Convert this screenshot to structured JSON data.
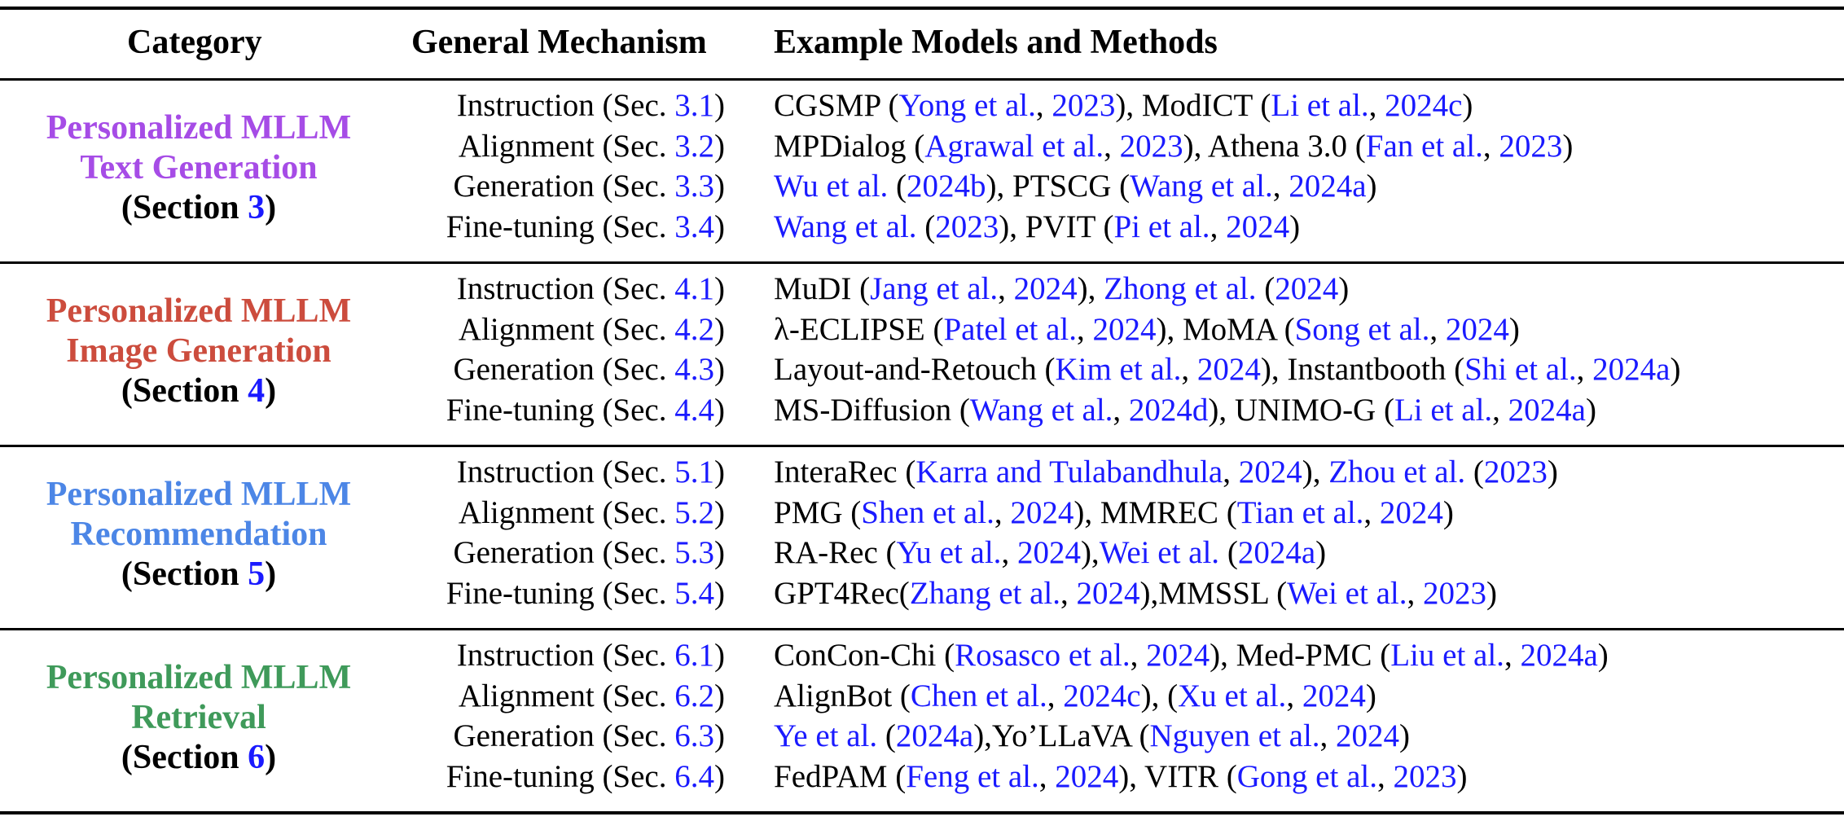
{
  "columns": {
    "category": "Category",
    "mechanism": "General Mechanism",
    "examples": "Example Models and Methods"
  },
  "colors": {
    "link": "#1a1aff",
    "text_generation": "#a64ce6",
    "image_generation": "#cc4c3d",
    "recommendation": "#4c86e6",
    "retrieval": "#3f9a5a"
  },
  "sections": [
    {
      "title_line1": "Personalized MLLM",
      "title_line2": "Text Generation",
      "section_label": "Section",
      "section_num": "3",
      "color": "#a64ce6",
      "rows": [
        {
          "mech": "Instruction (Sec. ",
          "num": "3.1",
          "parts": [
            {
              "t": "CGSMP (",
              "l": false
            },
            {
              "t": "Yong et al.",
              "l": true
            },
            {
              "t": ", ",
              "l": false
            },
            {
              "t": "2023",
              "l": true
            },
            {
              "t": "), ModICT (",
              "l": false
            },
            {
              "t": "Li et al.",
              "l": true
            },
            {
              "t": ", ",
              "l": false
            },
            {
              "t": "2024c",
              "l": true
            },
            {
              "t": ")",
              "l": false
            }
          ]
        },
        {
          "mech": "Alignment (Sec. ",
          "num": "3.2",
          "parts": [
            {
              "t": "MPDialog (",
              "l": false
            },
            {
              "t": "Agrawal et al.",
              "l": true
            },
            {
              "t": ", ",
              "l": false
            },
            {
              "t": "2023",
              "l": true
            },
            {
              "t": "), Athena 3.0 (",
              "l": false
            },
            {
              "t": "Fan et al.",
              "l": true
            },
            {
              "t": ", ",
              "l": false
            },
            {
              "t": "2023",
              "l": true
            },
            {
              "t": ")",
              "l": false
            }
          ]
        },
        {
          "mech": "Generation (Sec. ",
          "num": "3.3",
          "parts": [
            {
              "t": "Wu et al.",
              "l": true
            },
            {
              "t": " (",
              "l": false
            },
            {
              "t": "2024b",
              "l": true
            },
            {
              "t": "), PTSCG (",
              "l": false
            },
            {
              "t": "Wang et al.",
              "l": true
            },
            {
              "t": ", ",
              "l": false
            },
            {
              "t": "2024a",
              "l": true
            },
            {
              "t": ")",
              "l": false
            }
          ]
        },
        {
          "mech": "Fine-tuning (Sec. ",
          "num": "3.4",
          "parts": [
            {
              "t": "Wang et al.",
              "l": true
            },
            {
              "t": " (",
              "l": false
            },
            {
              "t": "2023",
              "l": true
            },
            {
              "t": "), PVIT (",
              "l": false
            },
            {
              "t": "Pi et al.",
              "l": true
            },
            {
              "t": ", ",
              "l": false
            },
            {
              "t": "2024",
              "l": true
            },
            {
              "t": ")",
              "l": false
            }
          ]
        }
      ]
    },
    {
      "title_line1": "Personalized MLLM",
      "title_line2": "Image Generation",
      "section_label": "Section",
      "section_num": "4",
      "color": "#cc4c3d",
      "rows": [
        {
          "mech": "Instruction (Sec. ",
          "num": "4.1",
          "parts": [
            {
              "t": "MuDI (",
              "l": false
            },
            {
              "t": "Jang et al.",
              "l": true
            },
            {
              "t": ", ",
              "l": false
            },
            {
              "t": "2024",
              "l": true
            },
            {
              "t": "), ",
              "l": false
            },
            {
              "t": "Zhong et al.",
              "l": true
            },
            {
              "t": " (",
              "l": false
            },
            {
              "t": "2024",
              "l": true
            },
            {
              "t": ")",
              "l": false
            }
          ]
        },
        {
          "mech": "Alignment (Sec. ",
          "num": "4.2",
          "parts": [
            {
              "t": "λ-ECLIPSE (",
              "l": false
            },
            {
              "t": "Patel et al.",
              "l": true
            },
            {
              "t": ", ",
              "l": false
            },
            {
              "t": "2024",
              "l": true
            },
            {
              "t": "), MoMA (",
              "l": false
            },
            {
              "t": "Song et al.",
              "l": true
            },
            {
              "t": ", ",
              "l": false
            },
            {
              "t": "2024",
              "l": true
            },
            {
              "t": ")",
              "l": false
            }
          ]
        },
        {
          "mech": "Generation (Sec. ",
          "num": "4.3",
          "parts": [
            {
              "t": "Layout-and-Retouch (",
              "l": false
            },
            {
              "t": "Kim et al.",
              "l": true
            },
            {
              "t": ", ",
              "l": false
            },
            {
              "t": "2024",
              "l": true
            },
            {
              "t": "), Instantbooth (",
              "l": false
            },
            {
              "t": "Shi et al.",
              "l": true
            },
            {
              "t": ", ",
              "l": false
            },
            {
              "t": "2024a",
              "l": true
            },
            {
              "t": ")",
              "l": false
            }
          ]
        },
        {
          "mech": "Fine-tuning (Sec. ",
          "num": "4.4",
          "parts": [
            {
              "t": "MS-Diffusion (",
              "l": false
            },
            {
              "t": "Wang et al.",
              "l": true
            },
            {
              "t": ", ",
              "l": false
            },
            {
              "t": "2024d",
              "l": true
            },
            {
              "t": "), UNIMO-G (",
              "l": false
            },
            {
              "t": "Li et al.",
              "l": true
            },
            {
              "t": ", ",
              "l": false
            },
            {
              "t": "2024a",
              "l": true
            },
            {
              "t": ")",
              "l": false
            }
          ]
        }
      ]
    },
    {
      "title_line1": "Personalized MLLM",
      "title_line2": "Recommendation",
      "section_label": "Section",
      "section_num": "5",
      "color": "#4c86e6",
      "rows": [
        {
          "mech": "Instruction (Sec. ",
          "num": "5.1",
          "parts": [
            {
              "t": "InteraRec (",
              "l": false
            },
            {
              "t": "Karra and Tulabandhula",
              "l": true
            },
            {
              "t": ", ",
              "l": false
            },
            {
              "t": "2024",
              "l": true
            },
            {
              "t": "), ",
              "l": false
            },
            {
              "t": "Zhou et al.",
              "l": true
            },
            {
              "t": " (",
              "l": false
            },
            {
              "t": "2023",
              "l": true
            },
            {
              "t": ")",
              "l": false
            }
          ]
        },
        {
          "mech": "Alignment (Sec. ",
          "num": "5.2",
          "parts": [
            {
              "t": "PMG (",
              "l": false
            },
            {
              "t": "Shen et al.",
              "l": true
            },
            {
              "t": ", ",
              "l": false
            },
            {
              "t": "2024",
              "l": true
            },
            {
              "t": "), MMREC (",
              "l": false
            },
            {
              "t": "Tian et al.",
              "l": true
            },
            {
              "t": ", ",
              "l": false
            },
            {
              "t": "2024",
              "l": true
            },
            {
              "t": ")",
              "l": false
            }
          ]
        },
        {
          "mech": "Generation (Sec. ",
          "num": "5.3",
          "parts": [
            {
              "t": "RA-Rec (",
              "l": false
            },
            {
              "t": "Yu et al.",
              "l": true
            },
            {
              "t": ", ",
              "l": false
            },
            {
              "t": "2024",
              "l": true
            },
            {
              "t": "),",
              "l": false
            },
            {
              "t": "Wei et al.",
              "l": true
            },
            {
              "t": " (",
              "l": false
            },
            {
              "t": "2024a",
              "l": true
            },
            {
              "t": ")",
              "l": false
            }
          ]
        },
        {
          "mech": "Fine-tuning (Sec. ",
          "num": "5.4",
          "parts": [
            {
              "t": "GPT4Rec(",
              "l": false
            },
            {
              "t": "Zhang et al.",
              "l": true
            },
            {
              "t": ", ",
              "l": false
            },
            {
              "t": "2024",
              "l": true
            },
            {
              "t": "),MMSSL (",
              "l": false
            },
            {
              "t": "Wei et al.",
              "l": true
            },
            {
              "t": ", ",
              "l": false
            },
            {
              "t": "2023",
              "l": true
            },
            {
              "t": ")",
              "l": false
            }
          ]
        }
      ]
    },
    {
      "title_line1": "Personalized MLLM",
      "title_line2": "Retrieval",
      "section_label": "Section",
      "section_num": "6",
      "color": "#3f9a5a",
      "rows": [
        {
          "mech": "Instruction (Sec. ",
          "num": "6.1",
          "parts": [
            {
              "t": "ConCon-Chi (",
              "l": false
            },
            {
              "t": "Rosasco et al.",
              "l": true
            },
            {
              "t": ", ",
              "l": false
            },
            {
              "t": "2024",
              "l": true
            },
            {
              "t": "), Med-PMC (",
              "l": false
            },
            {
              "t": "Liu et al.",
              "l": true
            },
            {
              "t": ", ",
              "l": false
            },
            {
              "t": "2024a",
              "l": true
            },
            {
              "t": ")",
              "l": false
            }
          ]
        },
        {
          "mech": "Alignment (Sec. ",
          "num": "6.2",
          "parts": [
            {
              "t": "AlignBot (",
              "l": false
            },
            {
              "t": "Chen et al.",
              "l": true
            },
            {
              "t": ", ",
              "l": false
            },
            {
              "t": "2024c",
              "l": true
            },
            {
              "t": "), (",
              "l": false
            },
            {
              "t": "Xu et al.",
              "l": true
            },
            {
              "t": ", ",
              "l": false
            },
            {
              "t": "2024",
              "l": true
            },
            {
              "t": ")",
              "l": false
            }
          ]
        },
        {
          "mech": "Generation (Sec. ",
          "num": "6.3",
          "parts": [
            {
              "t": "Ye et al.",
              "l": true
            },
            {
              "t": " (",
              "l": false
            },
            {
              "t": "2024a",
              "l": true
            },
            {
              "t": "),Yo’LLaVA (",
              "l": false
            },
            {
              "t": "Nguyen et al.",
              "l": true
            },
            {
              "t": ", ",
              "l": false
            },
            {
              "t": "2024",
              "l": true
            },
            {
              "t": ")",
              "l": false
            }
          ]
        },
        {
          "mech": "Fine-tuning (Sec. ",
          "num": "6.4",
          "parts": [
            {
              "t": "FedPAM (",
              "l": false
            },
            {
              "t": "Feng et al.",
              "l": true
            },
            {
              "t": ", ",
              "l": false
            },
            {
              "t": "2024",
              "l": true
            },
            {
              "t": "), VITR (",
              "l": false
            },
            {
              "t": "Gong et al.",
              "l": true
            },
            {
              "t": ", ",
              "l": false
            },
            {
              "t": "2023",
              "l": true
            },
            {
              "t": ")",
              "l": false
            }
          ]
        }
      ]
    }
  ]
}
